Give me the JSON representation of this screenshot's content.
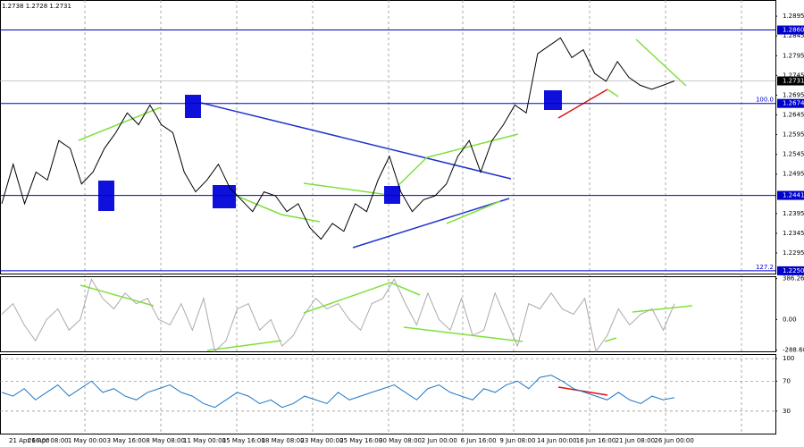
{
  "header": "1.2738 1.2728 1.2731",
  "time_labels": [
    "21 Apr 16:00",
    "26 Apr 08:00",
    "1 May 00:00",
    "3 May 16:00",
    "8 May 08:00",
    "11 May 00:00",
    "15 May 16:00",
    "18 May 08:00",
    "23 May 00:00",
    "25 May 16:00",
    "30 May 08:00",
    "2 Jun 00:00",
    "6 Jun 16:00",
    "9 Jun 08:00",
    "14 Jun 00:00",
    "16 Jun 16:00",
    "21 Jun 08:00",
    "26 Jun 00:00"
  ],
  "chart_data": [
    {
      "type": "line",
      "color": "#000000",
      "values": [
        1.242,
        1.252,
        1.242,
        1.25,
        1.248,
        1.258,
        1.256,
        1.247,
        1.25,
        1.256,
        1.26,
        1.265,
        1.262,
        1.267,
        1.262,
        1.26,
        1.25,
        1.245,
        1.248,
        1.252,
        1.246,
        1.243,
        1.24,
        1.245,
        1.244,
        1.24,
        1.242,
        1.236,
        1.233,
        1.237,
        1.235,
        1.242,
        1.24,
        1.248,
        1.254,
        1.245,
        1.24,
        1.243,
        1.244,
        1.247,
        1.254,
        1.258,
        1.25,
        1.258,
        1.262,
        1.267,
        1.265,
        1.28,
        1.282,
        1.284,
        1.279,
        1.281,
        1.275,
        1.273,
        1.278,
        1.274,
        1.272,
        1.271,
        1.272,
        1.2731
      ],
      "ylim": [
        1.2243,
        1.2936
      ],
      "yticks": [
        1.2895,
        1.2845,
        1.2795,
        1.2745,
        1.2695,
        1.2645,
        1.2595,
        1.2545,
        1.2495,
        1.2395,
        1.2345,
        1.2295
      ],
      "levels": [
        {
          "value": 1.286,
          "label": "1.2860"
        },
        1.2674,
        1.2441,
        {
          "value": 1.225,
          "label": "1.2250"
        }
      ],
      "level_color": "#0000cc",
      "fib_labels": [
        "100.0",
        "127.2"
      ],
      "current": 1.2731
    },
    {
      "type": "line",
      "color": "#aaaaaa",
      "values": [
        50,
        150,
        -50,
        -200,
        0,
        100,
        -100,
        0,
        380,
        200,
        100,
        250,
        150,
        200,
        0,
        -50,
        150,
        -100,
        200,
        -300,
        -200,
        100,
        150,
        -100,
        0,
        -250,
        -150,
        50,
        200,
        100,
        150,
        0,
        -100,
        150,
        200,
        380,
        150,
        -50,
        250,
        0,
        -100,
        200,
        -150,
        -100,
        250,
        0,
        -250,
        150,
        100,
        250,
        100,
        50,
        200,
        -300,
        -150,
        100,
        -50,
        50,
        100,
        -100,
        150
      ],
      "ylim": [
        -300,
        400
      ],
      "yticks": [
        386.2645,
        {
          "value": 0,
          "label": "0.00"
        },
        -288.682
      ]
    },
    {
      "type": "line",
      "color": "#1e78c8",
      "values": [
        55,
        50,
        60,
        45,
        55,
        65,
        50,
        60,
        70,
        55,
        60,
        50,
        45,
        55,
        60,
        65,
        55,
        50,
        40,
        35,
        45,
        55,
        50,
        40,
        45,
        35,
        40,
        50,
        45,
        40,
        55,
        45,
        50,
        55,
        60,
        65,
        55,
        45,
        60,
        65,
        55,
        50,
        45,
        60,
        55,
        65,
        70,
        60,
        75,
        78,
        70,
        60,
        55,
        50,
        45,
        55,
        45,
        40,
        50,
        45,
        48
      ],
      "ylim": [
        0,
        105
      ],
      "yticks": [
        100,
        70,
        30
      ]
    }
  ]
}
